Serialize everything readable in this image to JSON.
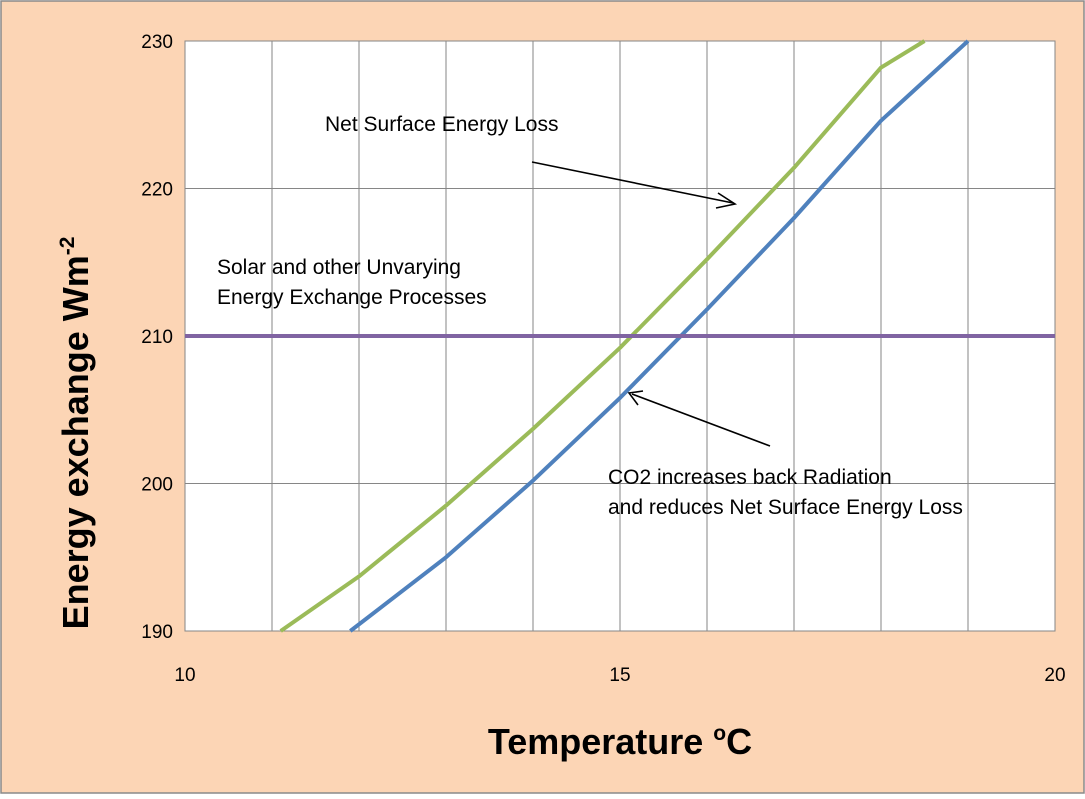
{
  "chart_data": {
    "type": "line",
    "title": "",
    "xlabel_main": "Temperature ",
    "xlabel_sup": "o",
    "xlabel_end": "C",
    "ylabel_main": "Energy exchange Wm",
    "ylabel_sup": "-2",
    "xlim": [
      10,
      20
    ],
    "ylim": [
      190,
      230
    ],
    "x_ticks": [
      10,
      15,
      20
    ],
    "x_gridlines": [
      10,
      11,
      12,
      13,
      14,
      15,
      16,
      17,
      18,
      19,
      20
    ],
    "y_ticks": [
      190,
      200,
      210,
      220,
      230
    ],
    "grid": true,
    "series": [
      {
        "color": "#9BBB59",
        "x": [
          11.1,
          12,
          13,
          14,
          15,
          16,
          17,
          18,
          18.5
        ],
        "values": [
          190,
          193.7,
          198.5,
          203.7,
          209.2,
          215.2,
          221.4,
          228.2,
          230
        ]
      },
      {
        "color": "#4F81BD",
        "x": [
          11.9,
          13,
          14,
          15,
          16,
          17,
          18,
          19
        ],
        "values": [
          190,
          195.0,
          200.2,
          205.8,
          211.8,
          218.0,
          224.6,
          230
        ]
      },
      {
        "color": "#8064A2",
        "x": [
          10,
          20
        ],
        "values": [
          210,
          210
        ]
      }
    ],
    "annotations": [
      {
        "id": "net-loss",
        "lines": [
          "Net Surface Energy Loss"
        ]
      },
      {
        "id": "solar",
        "lines": [
          "Solar and other Unvarying",
          "Energy Exchange Processes"
        ]
      },
      {
        "id": "co2",
        "lines": [
          "CO2 increases back Radiation",
          "and reduces Net Surface Energy Loss"
        ]
      }
    ]
  },
  "colors": {
    "frame_background": "#FCD5B5",
    "plot_background": "#FFFFFF",
    "gridline": "#868686"
  }
}
